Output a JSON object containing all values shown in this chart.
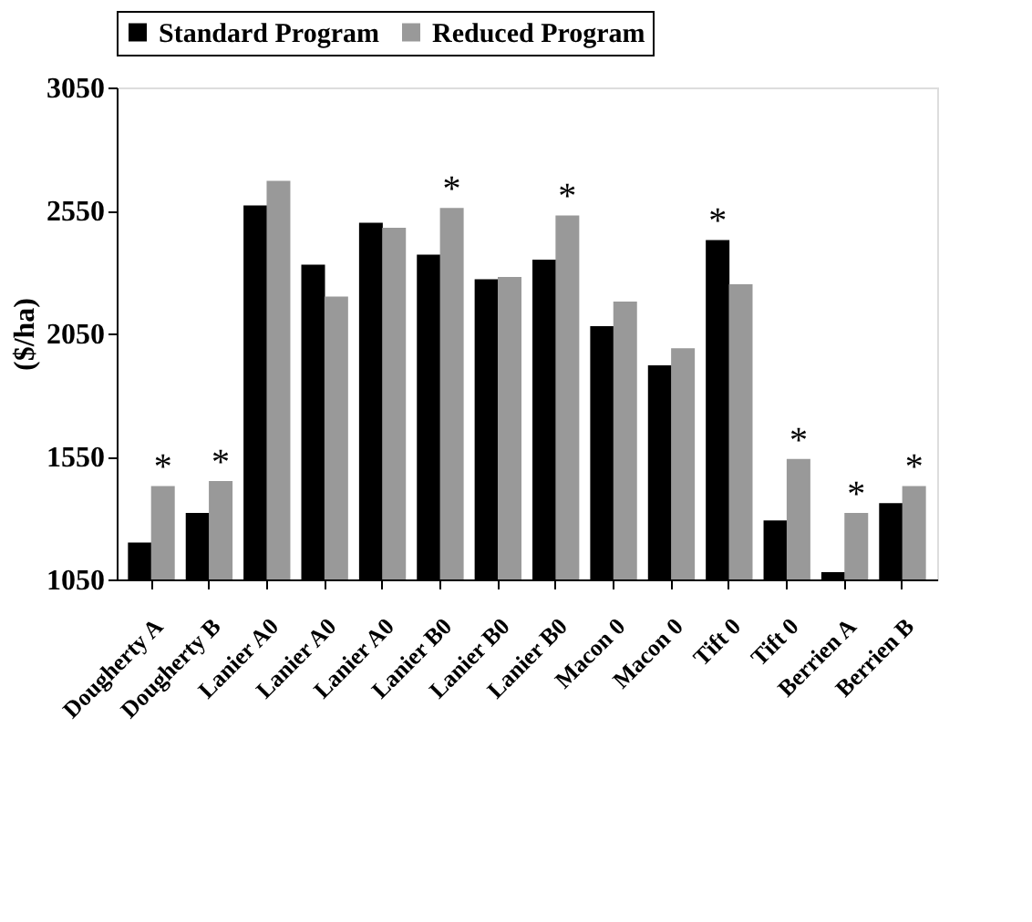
{
  "chart_data": {
    "type": "bar",
    "ylabel": "($/ha)",
    "categories": [
      "Dougherty A",
      "Dougherty B",
      "Lanier A0",
      "Lanier A0",
      "Lanier A0",
      "Lanier B0",
      "Lanier B0",
      "Lanier B0",
      "Macon 0",
      "Macon 0",
      "Tift 0",
      "Tift 0",
      "Berrien A",
      "Berrien B"
    ],
    "series": [
      {
        "name": "Standard Program",
        "color": "#000000",
        "values": [
          1200,
          1320,
          2570,
          2330,
          2500,
          2370,
          2270,
          2350,
          2080,
          1920,
          2430,
          1290,
          1080,
          1360
        ],
        "value_labels": [
          null,
          null,
          null,
          null,
          null,
          null,
          null,
          null,
          null,
          null,
          "*",
          null,
          null,
          null
        ]
      },
      {
        "name": "Reduced Program",
        "color": "#999999",
        "values": [
          1430,
          1450,
          2670,
          2200,
          2480,
          2560,
          2280,
          2530,
          2180,
          1990,
          2250,
          1540,
          1320,
          1430
        ],
        "value_labels": [
          "*",
          "*",
          null,
          null,
          null,
          "*",
          null,
          "*",
          null,
          null,
          null,
          "*",
          "*",
          "*"
        ]
      }
    ],
    "ylim": [
      1050,
      3050
    ],
    "yticks": [
      1050,
      1550,
      2050,
      2550,
      3050
    ],
    "grid": false,
    "legend": "top"
  }
}
